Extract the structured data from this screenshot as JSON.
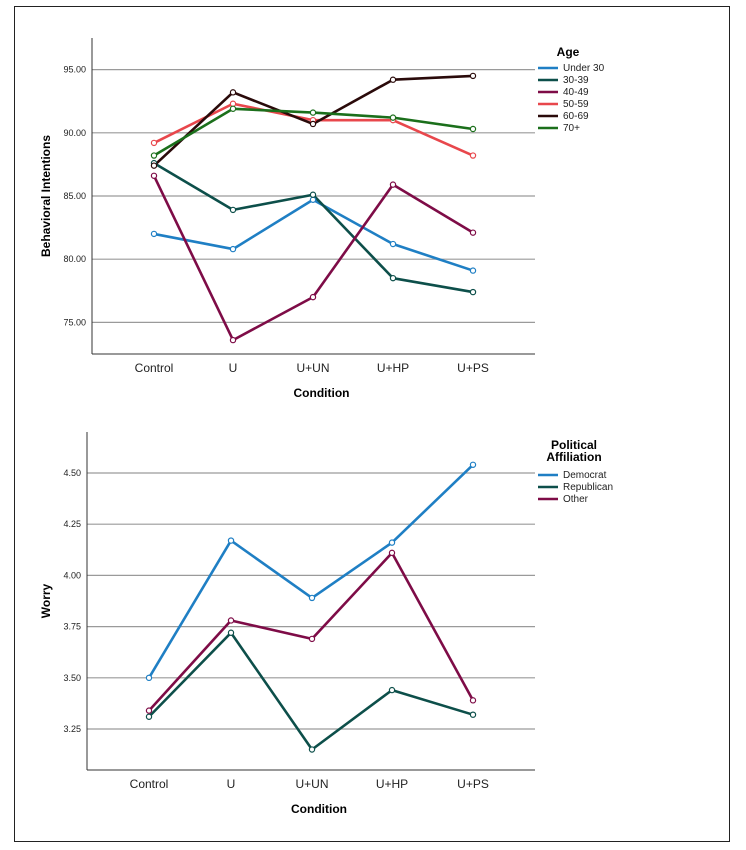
{
  "chart_data": [
    {
      "type": "line",
      "categories": [
        "Control",
        "U",
        "U+UN",
        "U+HP",
        "U+PS"
      ],
      "xlabel": "Condition",
      "ylabel": "Behavioral Intentions",
      "ylim": [
        72.5,
        97.5
      ],
      "yticks": [
        "75.00",
        "80.00",
        "85.00",
        "90.00",
        "95.00"
      ],
      "grid": "horizontal",
      "legend": {
        "title": "Age",
        "placement": "right"
      },
      "series": [
        {
          "name": "Under 30",
          "color": "#1f7fc4",
          "values": [
            82.0,
            80.8,
            84.7,
            81.2,
            79.1
          ]
        },
        {
          "name": "30-39",
          "color": "#0d4f4a",
          "values": [
            87.6,
            83.9,
            85.1,
            78.5,
            77.4
          ]
        },
        {
          "name": "40-49",
          "color": "#7e0c47",
          "values": [
            86.6,
            73.6,
            77.0,
            85.9,
            82.1
          ]
        },
        {
          "name": "50-59",
          "color": "#e8474c",
          "values": [
            89.2,
            92.3,
            91.0,
            91.0,
            88.2
          ]
        },
        {
          "name": "60-69",
          "color": "#2a0a0a",
          "values": [
            87.4,
            93.2,
            90.7,
            94.2,
            94.5
          ]
        },
        {
          "name": "70+",
          "color": "#1b6f1b",
          "values": [
            88.2,
            91.9,
            91.6,
            91.2,
            90.3
          ]
        }
      ]
    },
    {
      "type": "line",
      "categories": [
        "Control",
        "U",
        "U+UN",
        "U+HP",
        "U+PS"
      ],
      "xlabel": "Condition",
      "ylabel": "Worry",
      "ylim": [
        3.05,
        4.7
      ],
      "yticks": [
        "3.25",
        "3.50",
        "3.75",
        "4.00",
        "4.25",
        "4.50"
      ],
      "grid": "horizontal",
      "legend": {
        "title_lines": [
          "Political",
          "Affiliation"
        ],
        "placement": "right"
      },
      "series": [
        {
          "name": "Democrat",
          "color": "#1f7fc4",
          "values": [
            3.5,
            4.17,
            3.89,
            4.16,
            4.54
          ]
        },
        {
          "name": "Republican",
          "color": "#0d4f4a",
          "values": [
            3.31,
            3.72,
            3.15,
            3.44,
            3.32
          ]
        },
        {
          "name": "Other",
          "color": "#7e0c47",
          "values": [
            3.34,
            3.78,
            3.69,
            4.11,
            3.39
          ]
        }
      ]
    }
  ]
}
